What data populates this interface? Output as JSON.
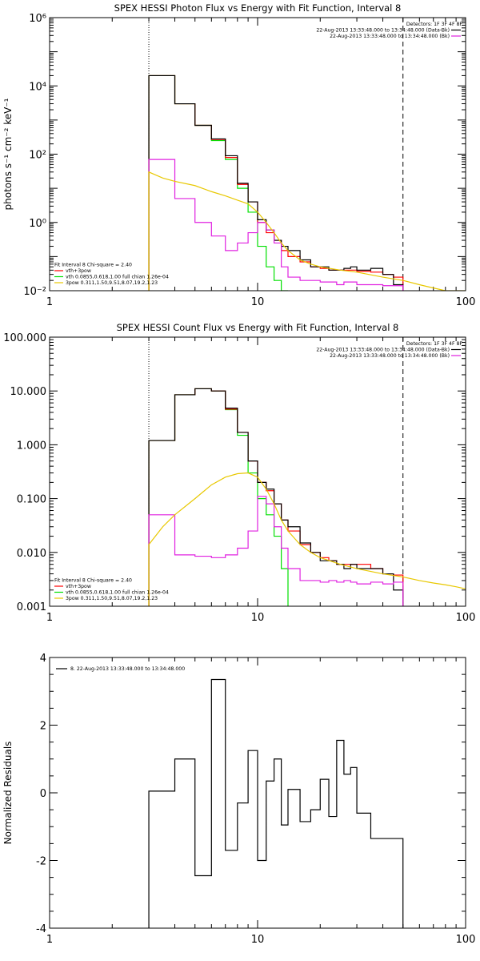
{
  "colors": {
    "black": "#000000",
    "red": "#ff0000",
    "green": "#00e000",
    "yellow": "#e8c800",
    "magenta": "#e020e0"
  },
  "chart_data": [
    {
      "type": "line",
      "title": "SPEX HESSI Photon Flux vs Energy with Fit Function, Interval 8",
      "xlabel": "",
      "ylabel": "photons s⁻¹ cm⁻² keV⁻¹",
      "xscale": "log",
      "yscale": "log",
      "xlim": [
        1,
        100
      ],
      "ylim": [
        0.01,
        1000000
      ],
      "xticks": [
        1,
        10,
        100
      ],
      "xtick_labels": [
        "1",
        "10",
        "100"
      ],
      "yticks": [
        0.01,
        1,
        100,
        10000,
        1000000
      ],
      "ytick_labels": [
        "10⁻²",
        "10⁰",
        "10²",
        "10⁴",
        "10⁶"
      ],
      "legend_top_right": [
        {
          "text": "Detectors: 1F 3F 4F 8F",
          "color": "",
          "marker": false
        },
        {
          "text": "22-Aug-2013 13:33:48.000 to 13:34:48.000 (Data-Bk)",
          "color": "#000000",
          "marker": true
        },
        {
          "text": "22-Aug-2013 13:33:48.000 to 13:34:48.000 (Bk)",
          "color": "#e020e0",
          "marker": true
        }
      ],
      "legend_bottom_left": [
        {
          "text": "Fit Interval  8    Chi-square = 2.40",
          "color": "",
          "marker": false
        },
        {
          "text": "vth+3pow",
          "color": "#ff0000",
          "marker": true
        },
        {
          "text": "vth 0.0855,0.618,1.00  full chian 1.26e-04",
          "color": "#00e000",
          "marker": true
        },
        {
          "text": "3pow 0.311,1.50,9.51,8.07,19.2,1.23",
          "color": "#e8c800",
          "marker": true
        }
      ],
      "vlines": [
        {
          "x": 3,
          "style": "dotted"
        },
        {
          "x": 50,
          "style": "dashed"
        }
      ],
      "series": [
        {
          "color": "#00e000",
          "style": "step",
          "edges": [
            3,
            4,
            5,
            6,
            7,
            8,
            9,
            10,
            11,
            12,
            13,
            14
          ],
          "values": [
            20000,
            3000,
            700,
            250,
            70,
            10,
            2,
            0.2,
            0.05,
            0.02,
            0.008
          ]
        },
        {
          "color": "#ff0000",
          "style": "step",
          "edges": [
            3,
            4,
            5,
            6,
            7,
            8,
            9,
            10,
            11,
            12,
            13,
            14,
            16,
            18,
            20,
            22,
            24,
            26,
            28,
            30,
            35,
            40,
            45,
            50
          ],
          "values": [
            20000,
            3000,
            700,
            270,
            80,
            13,
            4,
            1,
            0.5,
            0.3,
            0.15,
            0.1,
            0.07,
            0.05,
            0.045,
            0.04,
            0.04,
            0.04,
            0.04,
            0.037,
            0.035,
            0.03,
            0.025
          ]
        },
        {
          "color": "#000000",
          "style": "step",
          "edges": [
            3,
            4,
            5,
            6,
            7,
            8,
            9,
            10,
            11,
            12,
            13,
            14,
            16,
            18,
            20,
            22,
            24,
            26,
            28,
            30,
            35,
            40,
            45,
            50
          ],
          "values": [
            20000,
            3000,
            700,
            280,
            90,
            14,
            4,
            1.2,
            0.6,
            0.3,
            0.2,
            0.15,
            0.08,
            0.05,
            0.05,
            0.04,
            0.04,
            0.045,
            0.05,
            0.04,
            0.045,
            0.03,
            0.015
          ]
        },
        {
          "color": "#e020e0",
          "style": "step",
          "edges": [
            3,
            4,
            5,
            6,
            7,
            8,
            9,
            10,
            11,
            12,
            13,
            14,
            16,
            18,
            20,
            22,
            24,
            26,
            28,
            30,
            35,
            40,
            45,
            50
          ],
          "values": [
            70,
            5,
            1,
            0.4,
            0.15,
            0.25,
            0.5,
            1,
            0.6,
            0.25,
            0.05,
            0.025,
            0.02,
            0.02,
            0.018,
            0.018,
            0.015,
            0.018,
            0.018,
            0.015,
            0.015,
            0.014,
            0.014
          ]
        },
        {
          "color": "#e8c800",
          "style": "line",
          "x": [
            3,
            3.5,
            4,
            5,
            6,
            7,
            8,
            9,
            10,
            11,
            12,
            13,
            14,
            16,
            18,
            20,
            25,
            30,
            40,
            50,
            60,
            70,
            80,
            90,
            100
          ],
          "y": [
            30,
            20,
            16,
            12,
            8,
            6,
            4.5,
            3.5,
            2,
            1,
            0.5,
            0.25,
            0.15,
            0.08,
            0.06,
            0.05,
            0.04,
            0.035,
            0.025,
            0.02,
            0.015,
            0.012,
            0.01,
            0.008,
            0.007
          ]
        }
      ]
    },
    {
      "type": "line",
      "title": "SPEX HESSI Count Flux vs Energy with Fit Function, Interval 8",
      "xlabel": "",
      "ylabel": "",
      "xscale": "log",
      "yscale": "log",
      "xlim": [
        1,
        100
      ],
      "ylim": [
        0.001,
        100
      ],
      "xticks": [
        1,
        10,
        100
      ],
      "xtick_labels": [
        "1",
        "10",
        "100"
      ],
      "yticks": [
        0.001,
        0.01,
        0.1,
        1,
        10,
        100
      ],
      "ytick_labels": [
        "0.001",
        "0.010",
        "0.100",
        "1.000",
        "10.000",
        "100.000"
      ],
      "legend_top_right": [
        {
          "text": "Detectors: 1F 3F 4F 8F",
          "color": "",
          "marker": false
        },
        {
          "text": "22-Aug-2013 13:33:48.000 to 13:34:48.000 (Data-Bk)",
          "color": "#000000",
          "marker": true
        },
        {
          "text": "22-Aug-2013 13:33:48.000 to 13:34:48.000 (Bk)",
          "color": "#e020e0",
          "marker": true
        }
      ],
      "legend_bottom_left": [
        {
          "text": "Fit Interval  8    Chi-square = 2.40",
          "color": "",
          "marker": false
        },
        {
          "text": "vth+3pow",
          "color": "#ff0000",
          "marker": true
        },
        {
          "text": "vth 0.0855,0.618,1.00  full chian 1.26e-04",
          "color": "#00e000",
          "marker": true
        },
        {
          "text": "3pow 0.311,1.50,9.51,8.07,19.2,1.23",
          "color": "#e8c800",
          "marker": true
        }
      ],
      "vlines": [
        {
          "x": 3,
          "style": "dotted"
        },
        {
          "x": 50,
          "style": "dashed"
        }
      ],
      "series": [
        {
          "color": "#00e000",
          "style": "step",
          "edges": [
            3,
            4,
            5,
            6,
            7,
            8,
            9,
            10,
            11,
            12,
            13,
            14
          ],
          "values": [
            1.2,
            8.5,
            11,
            10,
            4.5,
            1.5,
            0.3,
            0.1,
            0.05,
            0.02,
            0.005
          ]
        },
        {
          "color": "#ff0000",
          "style": "step",
          "edges": [
            3,
            4,
            5,
            6,
            7,
            8,
            9,
            10,
            11,
            12,
            13,
            14,
            16,
            18,
            20,
            22,
            24,
            26,
            28,
            30,
            35,
            40,
            45,
            50
          ],
          "values": [
            1.2,
            8.5,
            11,
            10,
            4.6,
            1.7,
            0.5,
            0.2,
            0.14,
            0.08,
            0.04,
            0.025,
            0.014,
            0.01,
            0.008,
            0.007,
            0.006,
            0.006,
            0.006,
            0.006,
            0.005,
            0.004,
            0.0038
          ]
        },
        {
          "color": "#000000",
          "style": "step",
          "edges": [
            3,
            4,
            5,
            6,
            7,
            8,
            9,
            10,
            11,
            12,
            13,
            14,
            16,
            18,
            20,
            22,
            24,
            26,
            28,
            30,
            35,
            40,
            45,
            50
          ],
          "values": [
            1.2,
            8.5,
            11,
            10,
            4.8,
            1.7,
            0.5,
            0.2,
            0.15,
            0.08,
            0.04,
            0.03,
            0.015,
            0.01,
            0.007,
            0.007,
            0.006,
            0.005,
            0.006,
            0.005,
            0.005,
            0.004,
            0.002
          ]
        },
        {
          "color": "#e020e0",
          "style": "step",
          "edges": [
            3,
            4,
            5,
            6,
            7,
            8,
            9,
            10,
            11,
            12,
            13,
            14,
            16,
            18,
            20,
            22,
            24,
            26,
            28,
            30,
            35,
            40,
            45,
            50
          ],
          "values": [
            0.05,
            0.009,
            0.0085,
            0.008,
            0.009,
            0.012,
            0.025,
            0.11,
            0.08,
            0.03,
            0.012,
            0.005,
            0.003,
            0.003,
            0.0028,
            0.003,
            0.0028,
            0.003,
            0.0028,
            0.0026,
            0.0028,
            0.0026,
            0.0028
          ]
        },
        {
          "color": "#e8c800",
          "style": "line",
          "x": [
            3,
            3.5,
            4,
            5,
            6,
            7,
            8,
            9,
            10,
            11,
            12,
            13,
            14,
            16,
            18,
            20,
            25,
            30,
            40,
            50,
            60,
            70,
            80,
            90,
            100
          ],
          "y": [
            0.014,
            0.03,
            0.05,
            0.1,
            0.18,
            0.25,
            0.29,
            0.3,
            0.25,
            0.15,
            0.08,
            0.04,
            0.025,
            0.014,
            0.01,
            0.008,
            0.006,
            0.005,
            0.004,
            0.0035,
            0.003,
            0.0027,
            0.0025,
            0.0023,
            0.0021
          ]
        }
      ]
    },
    {
      "type": "line",
      "title": "",
      "xlabel": "",
      "ylabel": "Normalized Residuals",
      "xscale": "log",
      "yscale": "linear",
      "xlim": [
        1,
        100
      ],
      "ylim": [
        -4,
        4
      ],
      "xticks": [
        1,
        10,
        100
      ],
      "xtick_labels": [
        "1",
        "10",
        "100"
      ],
      "yticks": [
        -4,
        -2,
        0,
        2,
        4
      ],
      "ytick_labels": [
        "-4",
        "-2",
        "0",
        "2",
        "4"
      ],
      "legend_top_left": [
        {
          "text": "8. 22-Aug-2013 13:33:48.000 to 13:34:48.000",
          "color": "#000000",
          "marker": true
        }
      ],
      "series": [
        {
          "color": "#000000",
          "style": "step_residual",
          "edges": [
            3,
            4,
            5,
            6,
            7,
            8,
            9,
            10,
            11,
            12,
            13,
            14,
            16,
            18,
            20,
            22,
            24,
            26,
            28,
            30,
            35,
            40,
            45,
            50
          ],
          "values": [
            0.05,
            1.0,
            -2.45,
            3.35,
            -1.7,
            -0.3,
            1.25,
            -2.0,
            0.35,
            1.0,
            -0.95,
            0.1,
            -0.85,
            -0.5,
            0.4,
            -0.7,
            1.55,
            0.55,
            0.75,
            -0.6,
            -1.35,
            -1.35,
            -1.35
          ]
        }
      ]
    }
  ]
}
